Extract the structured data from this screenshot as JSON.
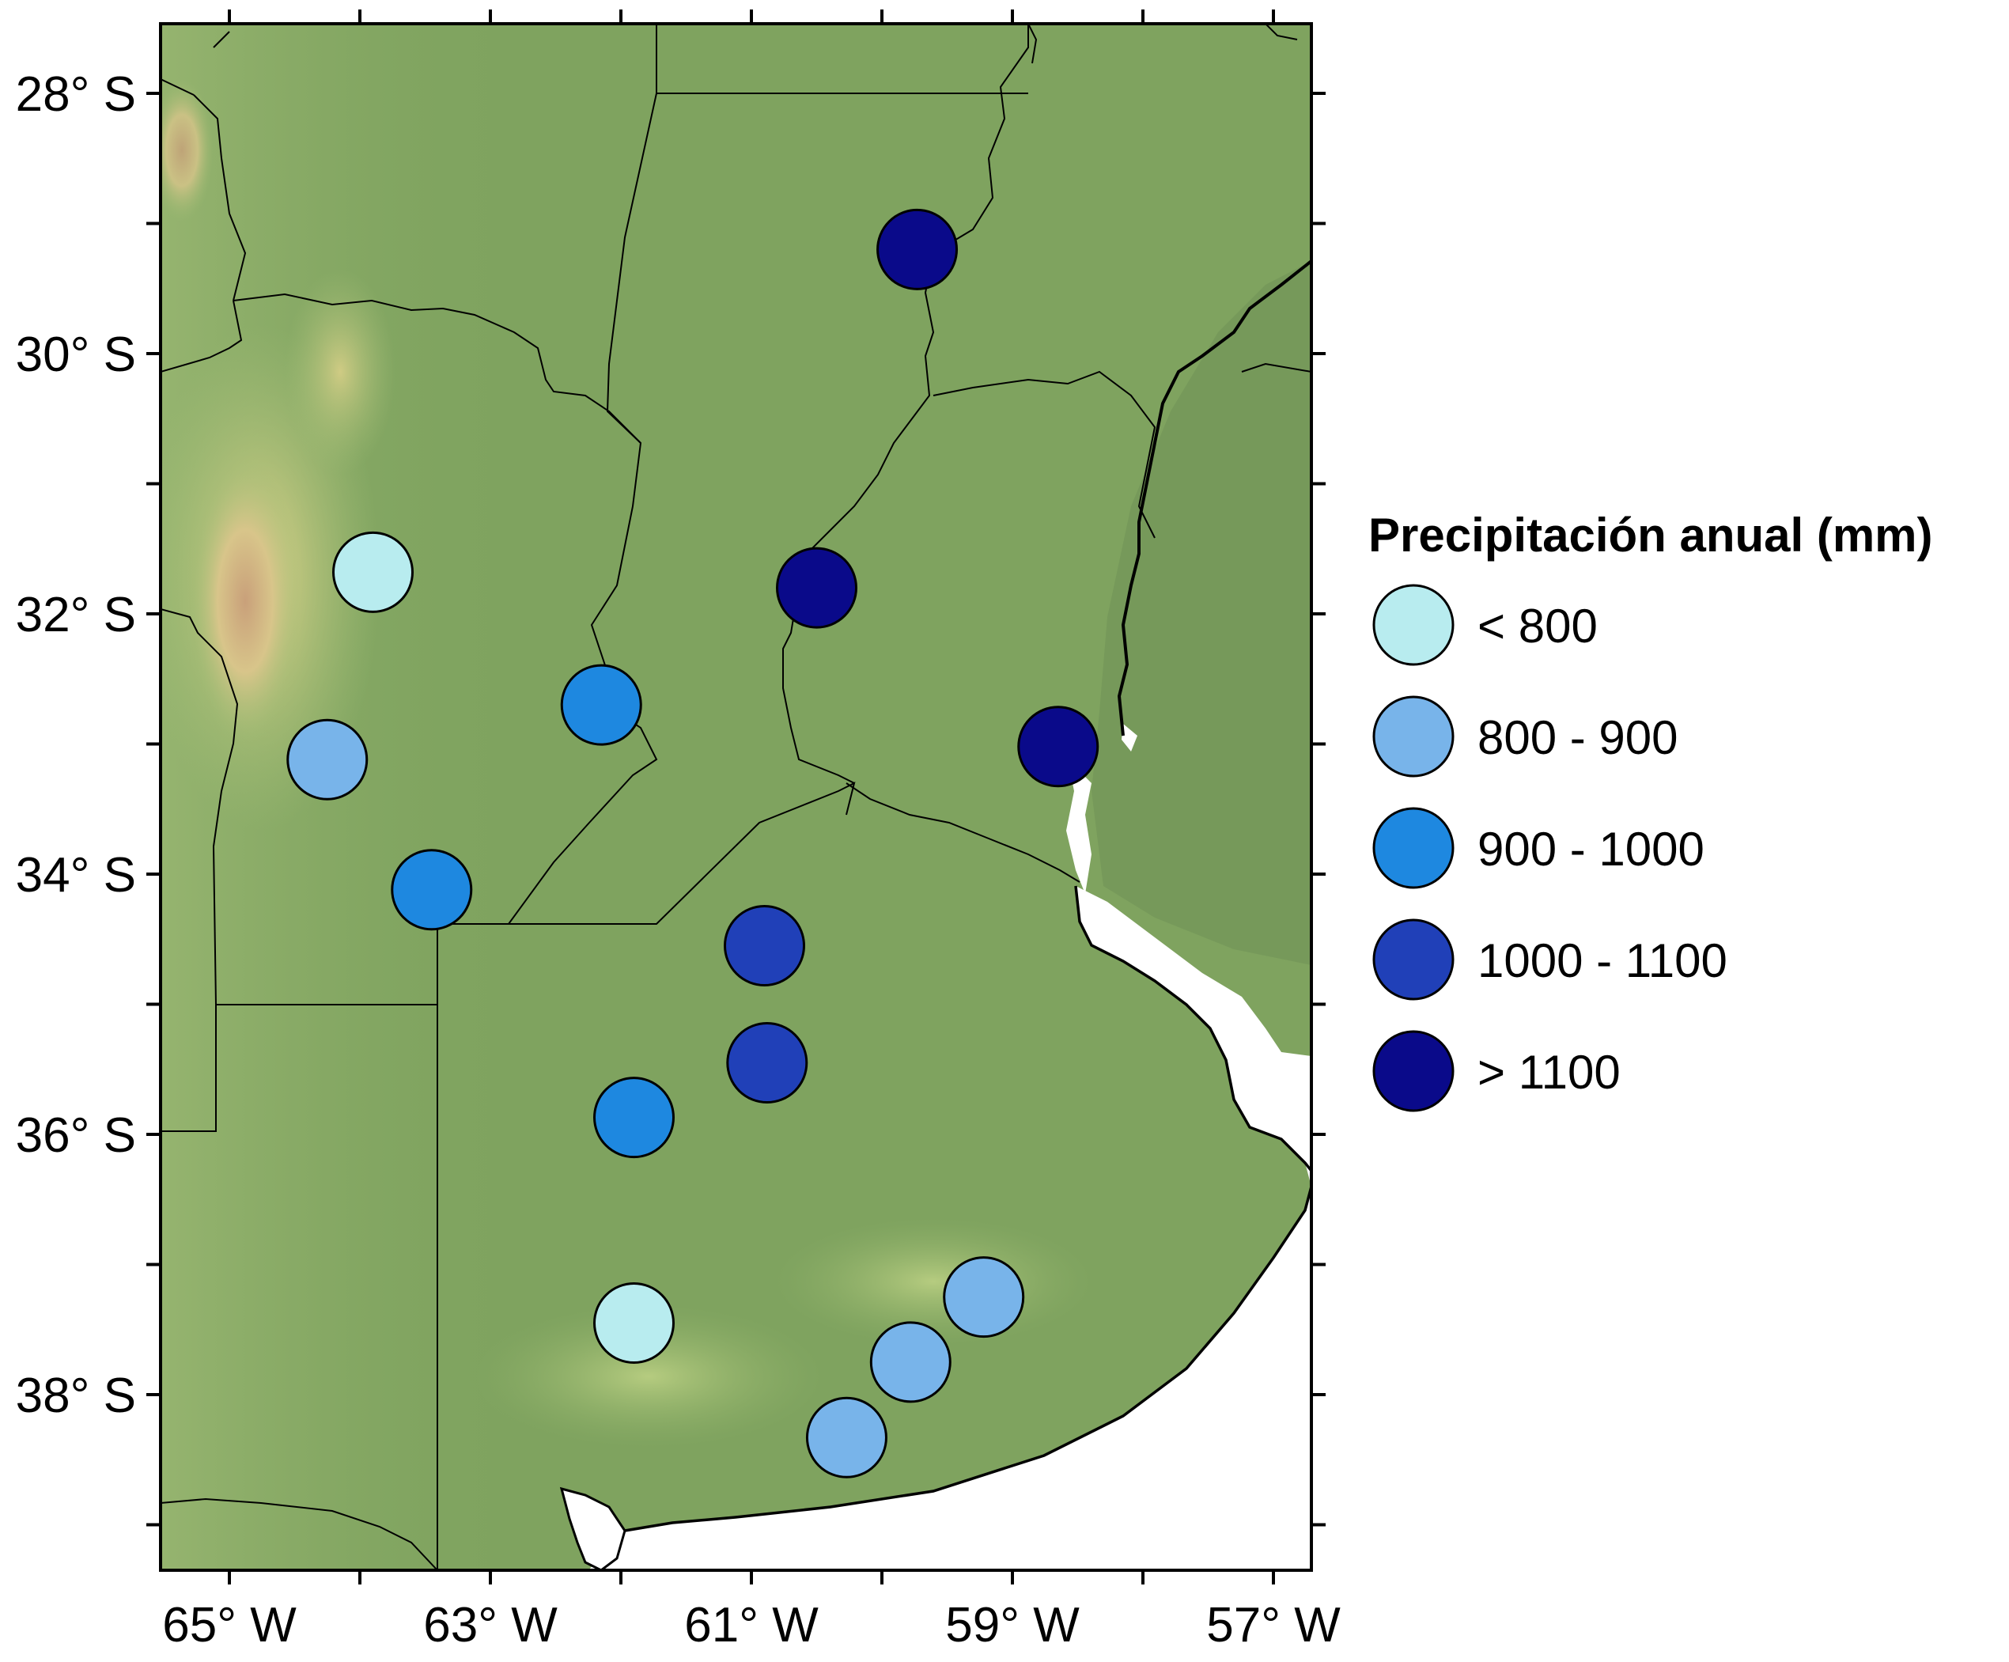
{
  "map": {
    "x_ticks": [
      {
        "lon": -65,
        "label": "65° W"
      },
      {
        "lon": -63,
        "label": "63° W"
      },
      {
        "lon": -61,
        "label": "61° W"
      },
      {
        "lon": -59,
        "label": "59° W"
      },
      {
        "lon": -57,
        "label": "57° W"
      }
    ],
    "y_ticks": [
      {
        "lat": -28,
        "label": "28° S"
      },
      {
        "lat": -30,
        "label": "30° S"
      },
      {
        "lat": -32,
        "label": "32° S"
      },
      {
        "lat": -34,
        "label": "34° S"
      },
      {
        "lat": -36,
        "label": "36° S"
      },
      {
        "lat": -38,
        "label": "38° S"
      }
    ],
    "lon_range": [
      -65.5,
      -56.7
    ],
    "lat_range": [
      -39.35,
      -27.5
    ]
  },
  "legend": {
    "title": "Precipitación anual (mm)",
    "classes": [
      {
        "label": "< 800",
        "color": "#b8ecef"
      },
      {
        "label": "800 - 900",
        "color": "#78b4ea"
      },
      {
        "label": "900 - 1000",
        "color": "#1e88e0"
      },
      {
        "label": "1000 - 1100",
        "color": "#2040b8"
      },
      {
        "label": "> 1100",
        "color": "#0a0a8a"
      }
    ]
  },
  "stations": [
    {
      "lon": -63.9,
      "lat": -31.68,
      "class": 0
    },
    {
      "lon": -64.25,
      "lat": -33.12,
      "class": 1
    },
    {
      "lon": -62.15,
      "lat": -32.7,
      "class": 2
    },
    {
      "lon": -63.45,
      "lat": -34.12,
      "class": 2
    },
    {
      "lon": -59.73,
      "lat": -29.2,
      "class": 4
    },
    {
      "lon": -60.5,
      "lat": -31.8,
      "class": 4
    },
    {
      "lon": -58.65,
      "lat": -33.02,
      "class": 4
    },
    {
      "lon": -60.9,
      "lat": -34.55,
      "class": 3
    },
    {
      "lon": -60.88,
      "lat": -35.45,
      "class": 3
    },
    {
      "lon": -61.9,
      "lat": -35.87,
      "class": 2
    },
    {
      "lon": -61.9,
      "lat": -37.45,
      "class": 0
    },
    {
      "lon": -59.22,
      "lat": -37.25,
      "class": 1
    },
    {
      "lon": -59.78,
      "lat": -37.75,
      "class": 1
    },
    {
      "lon": -60.27,
      "lat": -38.33,
      "class": 1
    }
  ]
}
